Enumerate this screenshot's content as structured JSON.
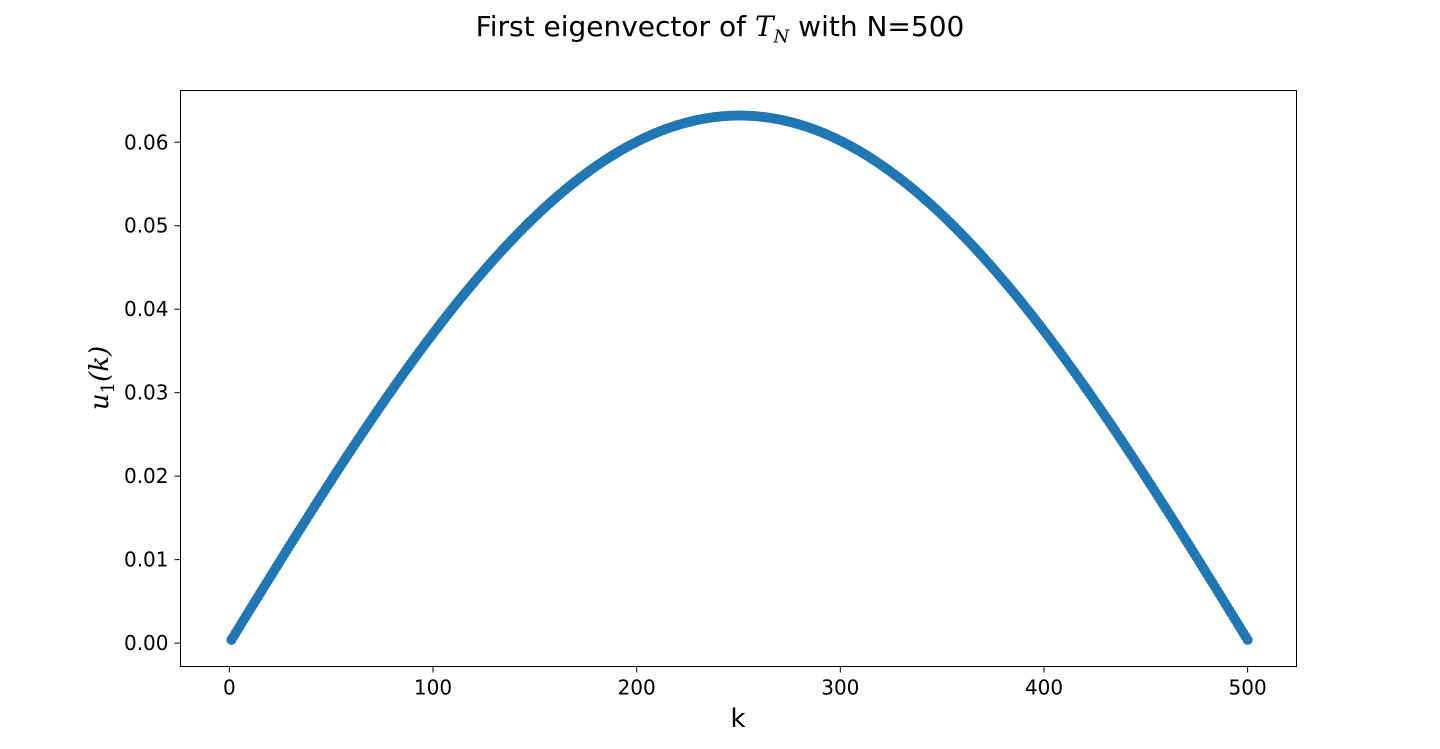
{
  "chart_data": {
    "type": "scatter",
    "title": {
      "prefix": "First eigenvector of ",
      "math_symbol": "T",
      "math_subscript": "N",
      "suffix": " with N=500"
    },
    "xlabel": "k",
    "ylabel": {
      "symbol": "u",
      "subscript": "1",
      "arg": "(k)"
    },
    "xlim": [
      -24,
      524
    ],
    "ylim": [
      -0.0028,
      0.0662
    ],
    "xticks": [
      0,
      100,
      200,
      300,
      400,
      500
    ],
    "xtick_labels": [
      "0",
      "100",
      "200",
      "300",
      "400",
      "500"
    ],
    "yticks": [
      0.0,
      0.01,
      0.02,
      0.03,
      0.04,
      0.05,
      0.06
    ],
    "ytick_labels": [
      "0.00",
      "0.01",
      "0.02",
      "0.03",
      "0.04",
      "0.05",
      "0.06"
    ],
    "series": [
      {
        "function": "u1(k) = 0.0632 * sin(pi * k / 501)",
        "k_start": 1,
        "k_end": 500,
        "k_step": 1,
        "color": "#1f77b4",
        "peak": 0.0632
      }
    ],
    "grid": false,
    "legend": "none"
  }
}
